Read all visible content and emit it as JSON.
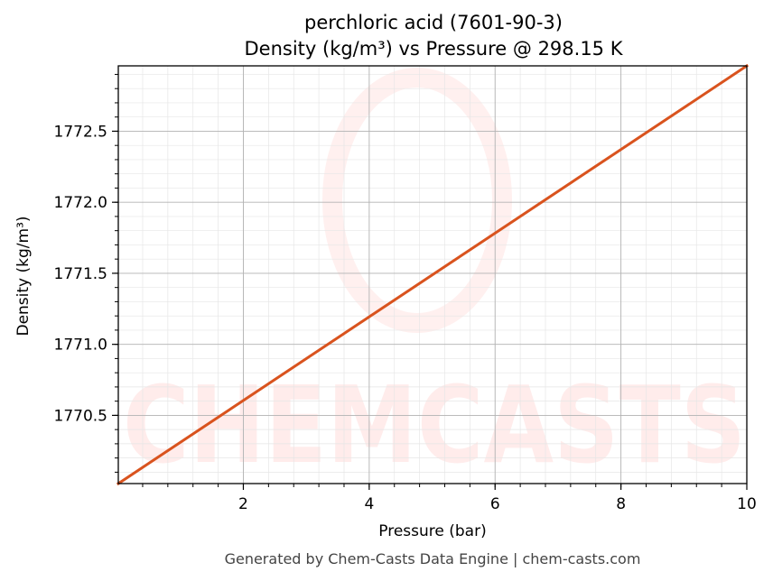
{
  "chart_data": {
    "type": "line",
    "title_line1": "perchloric acid (7601-90-3)",
    "title_line2": "Density (kg/m³) vs Pressure @ 298.15 K",
    "xlabel": "Pressure (bar)",
    "ylabel": "Density (kg/m³)",
    "xlim": [
      0.013,
      10
    ],
    "ylim": [
      1770.02,
      1772.96
    ],
    "x_ticks": [
      2,
      4,
      6,
      8,
      10
    ],
    "y_ticks": [
      1770.5,
      1771.0,
      1771.5,
      1772.0,
      1772.5
    ],
    "x_tick_labels": [
      "2",
      "4",
      "6",
      "8",
      "10"
    ],
    "y_tick_labels": [
      "1770.5",
      "1771.0",
      "1771.5",
      "1772.0",
      "1772.5"
    ],
    "grid": true,
    "series": [
      {
        "color": "#d9531e",
        "x": [
          0.013,
          10
        ],
        "y": [
          1770.02,
          1772.96
        ]
      }
    ]
  },
  "watermark": {
    "text": "CHEMCASTS",
    "color": "#ff3b30"
  },
  "footer": "Generated by Chem-Casts Data Engine | chem-casts.com"
}
